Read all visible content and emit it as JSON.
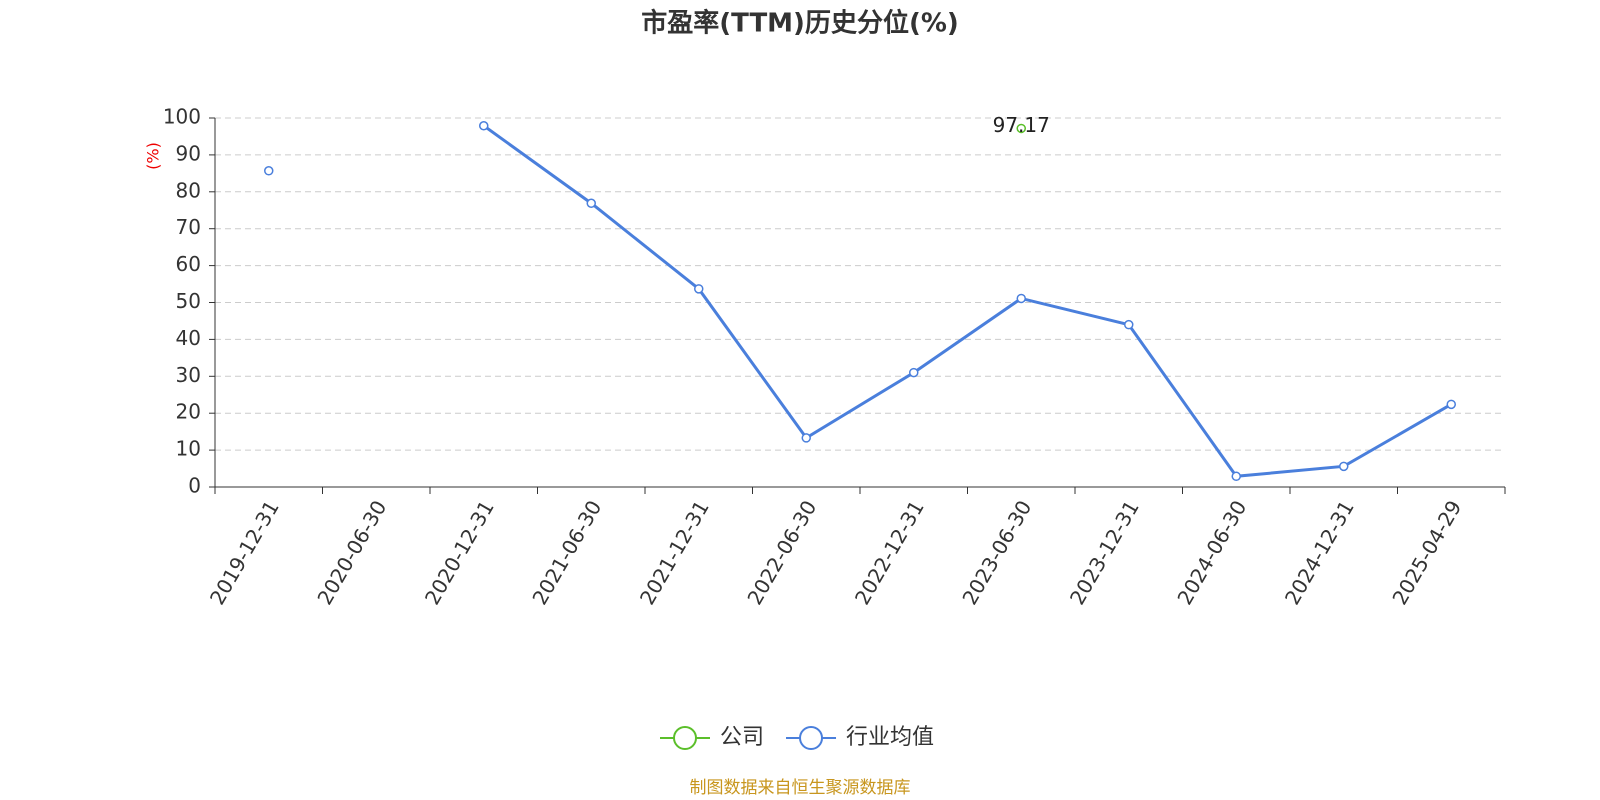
{
  "chart_data": {
    "type": "line",
    "title": "市盈率(TTM)历史分位(%)",
    "y_label": "(%)",
    "source": "制图数据来自恒生聚源数据库",
    "categories": [
      "2019-12-31",
      "2020-06-30",
      "2020-12-31",
      "2021-06-30",
      "2021-12-31",
      "2022-06-30",
      "2022-12-31",
      "2023-06-30",
      "2023-12-31",
      "2024-06-30",
      "2024-12-31",
      "2025-04-29"
    ],
    "series": [
      {
        "name": "公司",
        "color": "#5bbf2a",
        "values": [
          null,
          null,
          null,
          null,
          null,
          null,
          null,
          97.17,
          null,
          null,
          null,
          null
        ],
        "data_labels": true
      },
      {
        "name": "行业均值",
        "color": "#4a7fdc",
        "values": [
          85.7,
          null,
          97.9,
          76.9,
          53.7,
          13.3,
          31.0,
          51.1,
          44.0,
          2.9,
          5.6,
          22.4
        ]
      }
    ],
    "ylim": [
      0,
      100
    ],
    "yticks": [
      0,
      10,
      20,
      30,
      40,
      50,
      60,
      70,
      80,
      90,
      100
    ],
    "grid": true,
    "legend": "bottom"
  }
}
